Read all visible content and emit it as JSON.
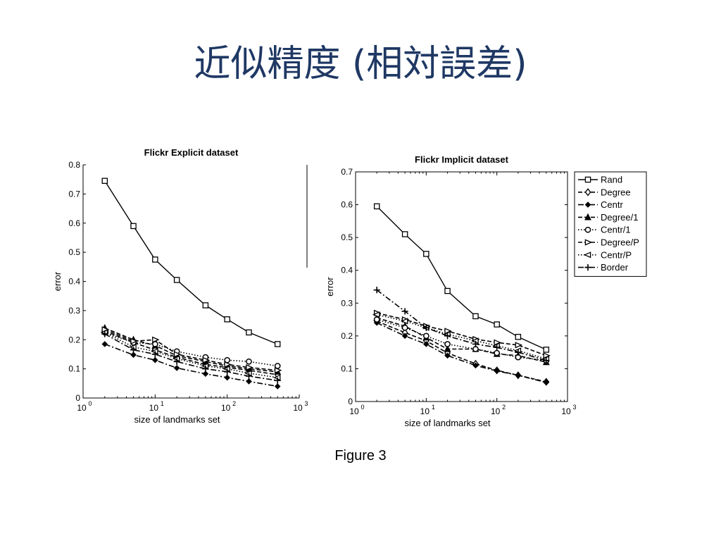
{
  "slide": {
    "title": "近似精度 (相対誤差)",
    "caption": "Figure 3"
  },
  "chart_data": [
    {
      "type": "line",
      "title": "Flickr Explicit dataset",
      "xlabel": "size of landmarks set",
      "ylabel": "error",
      "xscale": "log",
      "xlim": [
        1,
        1000
      ],
      "ylim": [
        0,
        0.8
      ],
      "x_tick_labels": [
        "10",
        "10",
        "10",
        "10"
      ],
      "x_tick_exponents": [
        "0",
        "1",
        "2",
        "3"
      ],
      "y_tick_labels": [
        "0",
        "0.1",
        "0.2",
        "0.3",
        "0.4",
        "0.5",
        "0.6",
        "0.7",
        "0.8"
      ],
      "grid": false,
      "legend": null,
      "series": [
        {
          "name": "Rand",
          "x": [
            2,
            5,
            10,
            20,
            50,
            100,
            200,
            500
          ],
          "y": [
            0.745,
            0.59,
            0.475,
            0.405,
            0.318,
            0.27,
            0.225,
            0.185
          ]
        },
        {
          "name": "Degree",
          "x": [
            2,
            5,
            10,
            20,
            50,
            100,
            200,
            500
          ],
          "y": [
            0.23,
            0.19,
            0.165,
            0.14,
            0.115,
            0.105,
            0.095,
            0.08
          ]
        },
        {
          "name": "Centr",
          "x": [
            2,
            5,
            10,
            20,
            50,
            100,
            200,
            500
          ],
          "y": [
            0.185,
            0.148,
            0.13,
            0.103,
            0.083,
            0.07,
            0.057,
            0.04
          ]
        },
        {
          "name": "Degree/1",
          "x": [
            2,
            5,
            10,
            20,
            50,
            100,
            200,
            500
          ],
          "y": [
            0.24,
            0.2,
            0.18,
            0.145,
            0.125,
            0.11,
            0.1,
            0.09
          ]
        },
        {
          "name": "Centr/1",
          "x": [
            2,
            5,
            10,
            20,
            50,
            100,
            200,
            500
          ],
          "y": [
            0.225,
            0.19,
            0.185,
            0.16,
            0.14,
            0.13,
            0.125,
            0.11
          ]
        },
        {
          "name": "Degree/P",
          "x": [
            2,
            5,
            10,
            20,
            50,
            100,
            200,
            500
          ],
          "y": [
            0.235,
            0.195,
            0.2,
            0.15,
            0.13,
            0.115,
            0.105,
            0.095
          ]
        },
        {
          "name": "Centr/P",
          "x": [
            2,
            5,
            10,
            20,
            50,
            100,
            200,
            500
          ],
          "y": [
            0.225,
            0.175,
            0.16,
            0.135,
            0.11,
            0.1,
            0.085,
            0.07
          ]
        },
        {
          "name": "Border",
          "x": [
            2,
            5,
            10,
            20,
            50,
            100,
            200,
            500
          ],
          "y": [
            0.22,
            0.165,
            0.15,
            0.125,
            0.1,
            0.09,
            0.075,
            0.06
          ]
        }
      ]
    },
    {
      "type": "line",
      "title": "Flickr Implicit dataset",
      "xlabel": "size of landmarks set",
      "ylabel": "error",
      "xscale": "log",
      "xlim": [
        1,
        1000
      ],
      "ylim": [
        0,
        0.7
      ],
      "x_tick_labels": [
        "10",
        "10",
        "10",
        "10"
      ],
      "x_tick_exponents": [
        "0",
        "1",
        "2",
        "3"
      ],
      "y_tick_labels": [
        "0",
        "0.1",
        "0.2",
        "0.3",
        "0.4",
        "0.5",
        "0.6",
        "0.7"
      ],
      "grid": false,
      "legend": "top-right",
      "series": [
        {
          "name": "Rand",
          "x": [
            2,
            5,
            10,
            20,
            50,
            100,
            200,
            500
          ],
          "y": [
            0.595,
            0.51,
            0.45,
            0.337,
            0.26,
            0.235,
            0.197,
            0.158
          ]
        },
        {
          "name": "Degree",
          "x": [
            2,
            5,
            10,
            20,
            50,
            100,
            200,
            500
          ],
          "y": [
            0.245,
            0.21,
            0.185,
            0.148,
            0.115,
            0.095,
            0.08,
            0.06
          ]
        },
        {
          "name": "Centr",
          "x": [
            2,
            5,
            10,
            20,
            50,
            100,
            200,
            500
          ],
          "y": [
            0.24,
            0.2,
            0.175,
            0.14,
            0.11,
            0.093,
            0.08,
            0.058
          ]
        },
        {
          "name": "Degree/1",
          "x": [
            2,
            5,
            10,
            20,
            50,
            100,
            200,
            500
          ],
          "y": [
            0.255,
            0.23,
            0.195,
            0.16,
            0.16,
            0.145,
            0.14,
            0.12
          ]
        },
        {
          "name": "Centr/1",
          "x": [
            2,
            5,
            10,
            20,
            50,
            100,
            200,
            500
          ],
          "y": [
            0.25,
            0.225,
            0.2,
            0.175,
            0.16,
            0.148,
            0.135,
            0.125
          ]
        },
        {
          "name": "Degree/P",
          "x": [
            2,
            5,
            10,
            20,
            50,
            100,
            200,
            500
          ],
          "y": [
            0.27,
            0.25,
            0.23,
            0.215,
            0.19,
            0.18,
            0.172,
            0.14
          ]
        },
        {
          "name": "Centr/P",
          "x": [
            2,
            5,
            10,
            20,
            50,
            100,
            200,
            500
          ],
          "y": [
            0.265,
            0.245,
            0.225,
            0.205,
            0.185,
            0.17,
            0.155,
            0.13
          ]
        },
        {
          "name": "Border",
          "x": [
            2,
            5,
            10,
            20,
            50,
            100,
            200,
            500
          ],
          "y": [
            0.34,
            0.275,
            0.225,
            0.2,
            0.175,
            0.165,
            0.15,
            0.125
          ]
        }
      ]
    }
  ]
}
